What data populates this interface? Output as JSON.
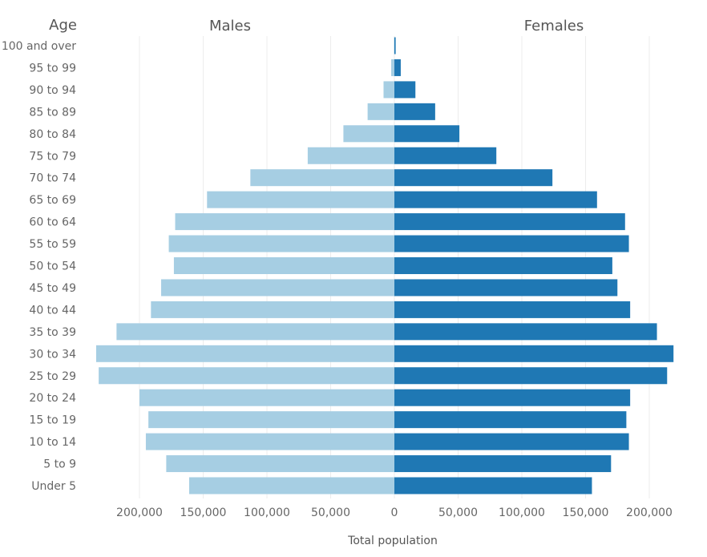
{
  "chart_data": {
    "type": "bar",
    "orientation": "horizontal",
    "layout": "population-pyramid",
    "age_header": "Age",
    "xlabel": "Total population",
    "categories": [
      "100 and over",
      "95 to 99",
      "90 to 94",
      "85 to 89",
      "80 to 84",
      "75 to 79",
      "70 to 74",
      "65 to 69",
      "60 to 64",
      "55 to 59",
      "50 to 54",
      "45 to 49",
      "40 to 44",
      "35 to 39",
      "30 to 34",
      "25 to 29",
      "20 to 24",
      "15 to 19",
      "10 to 14",
      "5 to 9",
      "Under 5"
    ],
    "series": [
      {
        "name": "Males",
        "color": "#a6cee3",
        "values": [
          300,
          2500,
          8500,
          21000,
          40000,
          68000,
          113000,
          147000,
          172000,
          177000,
          173000,
          183000,
          191000,
          218000,
          234000,
          232000,
          200000,
          193000,
          195000,
          179000,
          161000
        ]
      },
      {
        "name": "Females",
        "color": "#1f78b4",
        "values": [
          1000,
          5000,
          16500,
          32000,
          51000,
          80000,
          124000,
          159000,
          181000,
          184000,
          171000,
          175000,
          185000,
          206000,
          219000,
          214000,
          185000,
          182000,
          184000,
          170000,
          155000
        ]
      }
    ],
    "xlim": [
      -240000,
      220000
    ],
    "x_ticks": [
      -200000,
      -150000,
      -100000,
      -50000,
      0,
      50000,
      100000,
      150000,
      200000
    ],
    "x_tick_labels": [
      "200,000",
      "150,000",
      "100,000",
      "50,000",
      "0",
      "50,000",
      "100,000",
      "150,000",
      "200,000"
    ],
    "grid": true
  }
}
